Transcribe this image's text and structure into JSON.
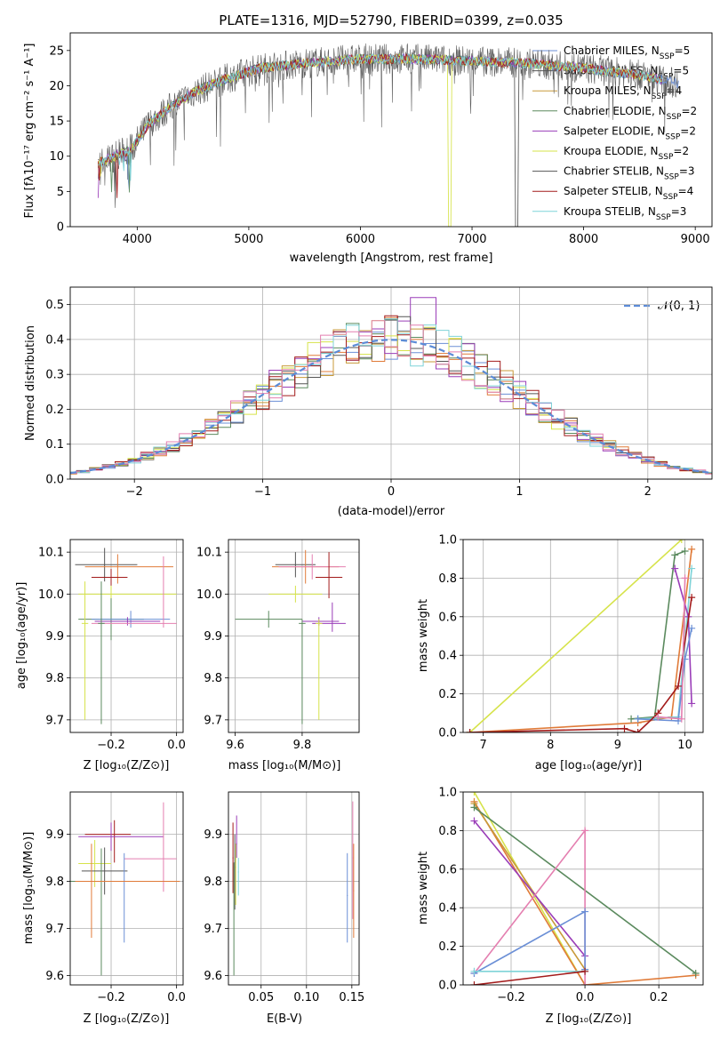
{
  "colors": [
    "#6b8fd6",
    "#e07b39",
    "#c89a3a",
    "#5b8a5e",
    "#9a3db8",
    "#d6e34a",
    "#555555",
    "#a31b1b",
    "#7fd3d8",
    "#e47fb0"
  ],
  "chart_data": [
    {
      "id": "spectrum",
      "type": "line",
      "title": "PLATE=1316, MJD=52790, FIBERID=0399, z=0.035",
      "xlabel": "wavelength [Angstrom, rest frame]",
      "ylabel": "Flux [fλ10⁻¹⁷ erg cm⁻² s⁻¹ A⁻¹]",
      "xlim": [
        3400,
        9150
      ],
      "ylim": [
        0,
        27.5
      ],
      "xticks": [
        4000,
        5000,
        6000,
        7000,
        8000,
        9000
      ],
      "yticks": [
        0,
        5,
        10,
        15,
        20,
        25
      ],
      "grid": false,
      "legend_position": "right",
      "series": [
        {
          "name": "Chabrier MILES, N_SSP=5",
          "color_index": 0
        },
        {
          "name": "Salpeter MILES, N_SSP=5",
          "color_index": 6
        },
        {
          "name": "Kroupa MILES, N_SSP=4",
          "color_index": 2
        },
        {
          "name": "Chabrier ELODIE, N_SSP=2",
          "color_index": 3
        },
        {
          "name": "Salpeter ELODIE, N_SSP=2",
          "color_index": 4
        },
        {
          "name": "Kroupa ELODIE, N_SSP=2",
          "color_index": 5
        },
        {
          "name": "Chabrier STELIB, N_SSP=3",
          "color_index": 6
        },
        {
          "name": "Salpeter STELIB, N_SSP=4",
          "color_index": 7
        },
        {
          "name": "Kroupa STELIB, N_SSP=3",
          "color_index": 8
        }
      ],
      "continuum": [
        [
          3650,
          9
        ],
        [
          3800,
          10
        ],
        [
          3950,
          11
        ],
        [
          4100,
          14.5
        ],
        [
          4300,
          17
        ],
        [
          4500,
          19
        ],
        [
          4800,
          21
        ],
        [
          5100,
          22.5
        ],
        [
          5500,
          23.2
        ],
        [
          6000,
          23.8
        ],
        [
          6500,
          23.8
        ],
        [
          7000,
          23.5
        ],
        [
          7500,
          23.2
        ],
        [
          8000,
          22.5
        ],
        [
          8500,
          21.5
        ],
        [
          8850,
          20.3
        ]
      ],
      "dropouts": [
        {
          "x": 6800,
          "series_index": 5
        },
        {
          "x": 7400,
          "series_index": 1
        }
      ]
    },
    {
      "id": "residuals",
      "type": "line",
      "xlabel": "(data-model)/error",
      "ylabel": "Normed distribution",
      "xlim": [
        -2.5,
        2.5
      ],
      "ylim": [
        0,
        0.55
      ],
      "xticks": [
        -2,
        -1,
        0,
        1,
        2
      ],
      "yticks": [
        0.0,
        0.1,
        0.2,
        0.3,
        0.4,
        0.5
      ],
      "grid": true,
      "legend_position": "top-right",
      "reference_curve": {
        "name": "𝒩(0, 1)",
        "color": "#5b8bd6"
      },
      "bin_width": 0.1
    },
    {
      "id": "age-vs-Z",
      "type": "scatter",
      "xlabel": "Z [log₁₀(Z/Z⊙)]",
      "ylabel": "age  [log₁₀(age/yr)]",
      "xlim": [
        -0.325,
        0.02
      ],
      "ylim": [
        9.67,
        10.13
      ],
      "xticks": [
        -0.2,
        0.0
      ],
      "yticks": [
        9.7,
        9.8,
        9.9,
        10.0,
        10.1
      ],
      "grid": true,
      "points": [
        {
          "x": -0.22,
          "y": 10.07,
          "xerr": [
            0.09,
            0.1
          ],
          "yerr": [
            0.04,
            0.04
          ],
          "c": 6
        },
        {
          "x": -0.18,
          "y": 10.065,
          "xerr": [
            0.1,
            0.17
          ],
          "yerr": [
            0.04,
            0.03
          ],
          "c": 1
        },
        {
          "x": -0.2,
          "y": 10.04,
          "xerr": [
            0.06,
            0.05
          ],
          "yerr": [
            0.02,
            0.02
          ],
          "c": 7
        },
        {
          "x": -0.2,
          "y": 10.0,
          "xerr": [
            0.1,
            0.2
          ],
          "yerr": [
            0.02,
            0.02
          ],
          "c": 5
        },
        {
          "x": -0.2,
          "y": 9.94,
          "xerr": [
            0.1,
            0.1
          ],
          "yerr": [
            0.05,
            0.05
          ],
          "c": 3
        },
        {
          "x": -0.14,
          "y": 9.94,
          "xerr": [
            0.12,
            0.12
          ],
          "yerr": [
            0.02,
            0.02
          ],
          "c": 0
        },
        {
          "x": -0.15,
          "y": 9.935,
          "xerr": [
            0.1,
            0.1
          ],
          "yerr": [
            0.01,
            0.01
          ],
          "c": 4
        },
        {
          "x": -0.04,
          "y": 9.93,
          "xerr": [
            0.22,
            0.04
          ],
          "yerr": [
            0.01,
            0.16
          ],
          "c": 9
        },
        {
          "x": -0.28,
          "y": 9.93,
          "xerr": [
            0.01,
            0.01
          ],
          "yerr": [
            0.23,
            0.1
          ],
          "c": 5
        },
        {
          "x": -0.23,
          "y": 9.93,
          "xerr": [
            0.01,
            0.01
          ],
          "yerr": [
            0.24,
            0.1
          ],
          "c": 3
        }
      ]
    },
    {
      "id": "age-vs-mass",
      "type": "scatter",
      "xlabel": "mass [log₁₀(M/M⊙)]",
      "xlim": [
        9.58,
        9.97
      ],
      "ylim": [
        9.67,
        10.13
      ],
      "xticks": [
        9.6,
        9.8
      ],
      "yticks": [
        9.7,
        9.8,
        9.9,
        10.0,
        10.1
      ],
      "grid": true,
      "points": [
        {
          "x": 9.78,
          "y": 10.07,
          "xerr": [
            0.06,
            0.06
          ],
          "yerr": [
            0.03,
            0.03
          ],
          "c": 6
        },
        {
          "x": 9.81,
          "y": 10.065,
          "xerr": [
            0.1,
            0.1
          ],
          "yerr": [
            0.04,
            0.04
          ],
          "c": 1
        },
        {
          "x": 9.83,
          "y": 10.065,
          "xerr": [
            0.1,
            0.1
          ],
          "yerr": [
            0.03,
            0.03
          ],
          "c": 9
        },
        {
          "x": 9.88,
          "y": 10.04,
          "xerr": [
            0.04,
            0.04
          ],
          "yerr": [
            0.05,
            0.06
          ],
          "c": 7
        },
        {
          "x": 9.78,
          "y": 10.0,
          "xerr": [
            0.08,
            0.08
          ],
          "yerr": [
            0.02,
            0.02
          ],
          "c": 5
        },
        {
          "x": 9.7,
          "y": 9.94,
          "xerr": [
            0.1,
            0.1
          ],
          "yerr": [
            0.02,
            0.02
          ],
          "c": 3
        },
        {
          "x": 9.85,
          "y": 9.935,
          "xerr": [
            0.05,
            0.06
          ],
          "yerr": [
            0.01,
            0.01
          ],
          "c": 4
        },
        {
          "x": 9.89,
          "y": 9.93,
          "xerr": [
            0.06,
            0.04
          ],
          "yerr": [
            0.02,
            0.05
          ],
          "c": 4
        },
        {
          "x": 9.85,
          "y": 9.93,
          "xerr": [
            0.01,
            0.01
          ],
          "yerr": [
            0.23,
            0.01
          ],
          "c": 5
        },
        {
          "x": 9.8,
          "y": 9.93,
          "xerr": [
            0.01,
            0.01
          ],
          "yerr": [
            0.24,
            0.01
          ],
          "c": 3
        }
      ]
    },
    {
      "id": "weight-vs-age",
      "type": "line",
      "xlabel": "age  [log₁₀(age/yr)]",
      "ylabel": "mass weight",
      "xlim": [
        6.7,
        10.27
      ],
      "ylim": [
        0,
        1
      ],
      "xticks": [
        7,
        8,
        9,
        10
      ],
      "yticks": [
        0.0,
        0.2,
        0.4,
        0.6,
        0.8,
        1.0
      ],
      "grid": true,
      "series": [
        {
          "c": 5,
          "x": [
            6.8,
            9.95
          ],
          "y": [
            0.0,
            1.0
          ]
        },
        {
          "c": 1,
          "x": [
            6.8,
            9.3,
            9.8,
            10.1
          ],
          "y": [
            0.0,
            0.05,
            0.08,
            0.95
          ]
        },
        {
          "c": 3,
          "x": [
            9.2,
            9.55,
            9.85,
            10.0
          ],
          "y": [
            0.07,
            0.08,
            0.92,
            0.94
          ]
        },
        {
          "c": 8,
          "x": [
            9.3,
            9.9,
            10.1
          ],
          "y": [
            0.07,
            0.08,
            0.85
          ]
        },
        {
          "c": 4,
          "x": [
            9.85,
            10.05,
            10.1
          ],
          "y": [
            0.85,
            0.6,
            0.15
          ]
        },
        {
          "c": 0,
          "x": [
            9.3,
            9.9,
            10.0,
            10.1
          ],
          "y": [
            0.07,
            0.06,
            0.38,
            0.54
          ]
        },
        {
          "c": 7,
          "x": [
            6.8,
            9.1,
            9.3,
            9.6,
            9.9,
            10.1
          ],
          "y": [
            0.0,
            0.02,
            0.0,
            0.1,
            0.24,
            0.7
          ]
        },
        {
          "c": 9,
          "x": [
            9.6,
            9.95,
            10.0
          ],
          "y": [
            0.08,
            0.07,
            0.8
          ]
        }
      ]
    },
    {
      "id": "mass-vs-Z",
      "type": "scatter",
      "xlabel": "Z [log₁₀(Z/Z⊙)]",
      "ylabel": "mass [log₁₀(M/M⊙)]",
      "xlim": [
        -0.325,
        0.02
      ],
      "ylim": [
        9.58,
        9.99
      ],
      "xticks": [
        -0.2,
        0.0
      ],
      "yticks": [
        9.6,
        9.7,
        9.8,
        9.9
      ],
      "grid": true,
      "points": [
        {
          "x": -0.19,
          "y": 9.9,
          "xerr": [
            0.09,
            0.05
          ],
          "yerr": [
            0.06,
            0.03
          ],
          "c": 7
        },
        {
          "x": -0.2,
          "y": 9.895,
          "xerr": [
            0.1,
            0.16
          ],
          "yerr": [
            0.03,
            0.03
          ],
          "c": 4
        },
        {
          "x": -0.04,
          "y": 9.848,
          "xerr": [
            0.12,
            0.04
          ],
          "yerr": [
            0.07,
            0.12
          ],
          "c": 9
        },
        {
          "x": -0.25,
          "y": 9.838,
          "xerr": [
            0.05,
            0.05
          ],
          "yerr": [
            0.05,
            0.05
          ],
          "c": 5
        },
        {
          "x": -0.22,
          "y": 9.822,
          "xerr": [
            0.07,
            0.07
          ],
          "yerr": [
            0.05,
            0.05
          ],
          "c": 6
        },
        {
          "x": -0.16,
          "y": 9.8,
          "xerr": [
            0.15,
            0.16
          ],
          "yerr": [
            0.13,
            0.06
          ],
          "c": 0
        },
        {
          "x": -0.23,
          "y": 9.8,
          "xerr": [
            0.1,
            0.23
          ],
          "yerr": [
            0.2,
            0.07
          ],
          "c": 3
        },
        {
          "x": -0.26,
          "y": 9.8,
          "xerr": [
            0.05,
            0.27
          ],
          "yerr": [
            0.12,
            0.08
          ],
          "c": 1
        }
      ]
    },
    {
      "id": "mass-vs-EBV",
      "type": "scatter",
      "xlabel": "E(B-V)",
      "xlim": [
        0.014,
        0.158
      ],
      "ylim": [
        9.58,
        9.99
      ],
      "xticks": [
        0.05,
        0.1,
        0.15
      ],
      "xtick_labels": [
        "0.05",
        "0.10",
        "0.15"
      ],
      "yticks": [
        9.6,
        9.7,
        9.8,
        9.9
      ],
      "grid": true,
      "points": [
        {
          "x": 0.019,
          "y": 9.85,
          "xerr": [
            0.0005,
            0.0005
          ],
          "yerr": [
            0.075,
            0.075
          ],
          "c": 7
        },
        {
          "x": 0.021,
          "y": 9.84,
          "xerr": [
            0.0005,
            0.0005
          ],
          "yerr": [
            0.1,
            0.06
          ],
          "c": 6
        },
        {
          "x": 0.022,
          "y": 9.83,
          "xerr": [
            0.0005,
            0.0005
          ],
          "yerr": [
            0.08,
            0.05
          ],
          "c": 5
        },
        {
          "x": 0.023,
          "y": 9.88,
          "xerr": [
            0.0005,
            0.0005
          ],
          "yerr": [
            0.03,
            0.06
          ],
          "c": 4
        },
        {
          "x": 0.02,
          "y": 9.8,
          "xerr": [
            0.0005,
            0.0005
          ],
          "yerr": [
            0.2,
            0.04
          ],
          "c": 3
        },
        {
          "x": 0.025,
          "y": 9.82,
          "xerr": [
            0.0005,
            0.0005
          ],
          "yerr": [
            0.05,
            0.03
          ],
          "c": 8
        },
        {
          "x": 0.145,
          "y": 9.77,
          "xerr": [
            0.0005,
            0.0005
          ],
          "yerr": [
            0.1,
            0.09
          ],
          "c": 0
        },
        {
          "x": 0.151,
          "y": 9.85,
          "xerr": [
            0.0005,
            0.0005
          ],
          "yerr": [
            0.13,
            0.12
          ],
          "c": 9
        },
        {
          "x": 0.152,
          "y": 9.78,
          "xerr": [
            0.0005,
            0.0005
          ],
          "yerr": [
            0.1,
            0.1
          ],
          "c": 1
        }
      ]
    },
    {
      "id": "weight-vs-Z",
      "type": "line",
      "xlabel": "Z [log₁₀(Z/Z⊙)]",
      "ylabel": "mass weight",
      "xlim": [
        -0.33,
        0.32
      ],
      "ylim": [
        0,
        1
      ],
      "xticks": [
        -0.2,
        0.0,
        0.2
      ],
      "yticks": [
        0.0,
        0.2,
        0.4,
        0.6,
        0.8,
        1.0
      ],
      "grid": true,
      "series": [
        {
          "c": 5,
          "x": [
            -0.3,
            0.0
          ],
          "y": [
            1.0,
            0.0
          ]
        },
        {
          "c": 1,
          "x": [
            -0.3,
            0.0,
            0.3
          ],
          "y": [
            0.95,
            0.0,
            0.05
          ]
        },
        {
          "c": 2,
          "x": [
            -0.3,
            0.0
          ],
          "y": [
            0.94,
            0.08
          ]
        },
        {
          "c": 3,
          "x": [
            -0.3,
            0.3
          ],
          "y": [
            0.92,
            0.06
          ]
        },
        {
          "c": 4,
          "x": [
            -0.3,
            0.0
          ],
          "y": [
            0.85,
            0.15
          ]
        },
        {
          "c": 9,
          "x": [
            -0.3,
            0.0,
            0.0
          ],
          "y": [
            0.06,
            0.8,
            0.0
          ]
        },
        {
          "c": 0,
          "x": [
            -0.3,
            0.0,
            0.0
          ],
          "y": [
            0.06,
            0.38,
            0.08
          ]
        },
        {
          "c": 8,
          "x": [
            -0.3,
            0.0
          ],
          "y": [
            0.07,
            0.07
          ]
        },
        {
          "c": 7,
          "x": [
            -0.3,
            0.0
          ],
          "y": [
            0.0,
            0.07
          ]
        }
      ]
    }
  ]
}
